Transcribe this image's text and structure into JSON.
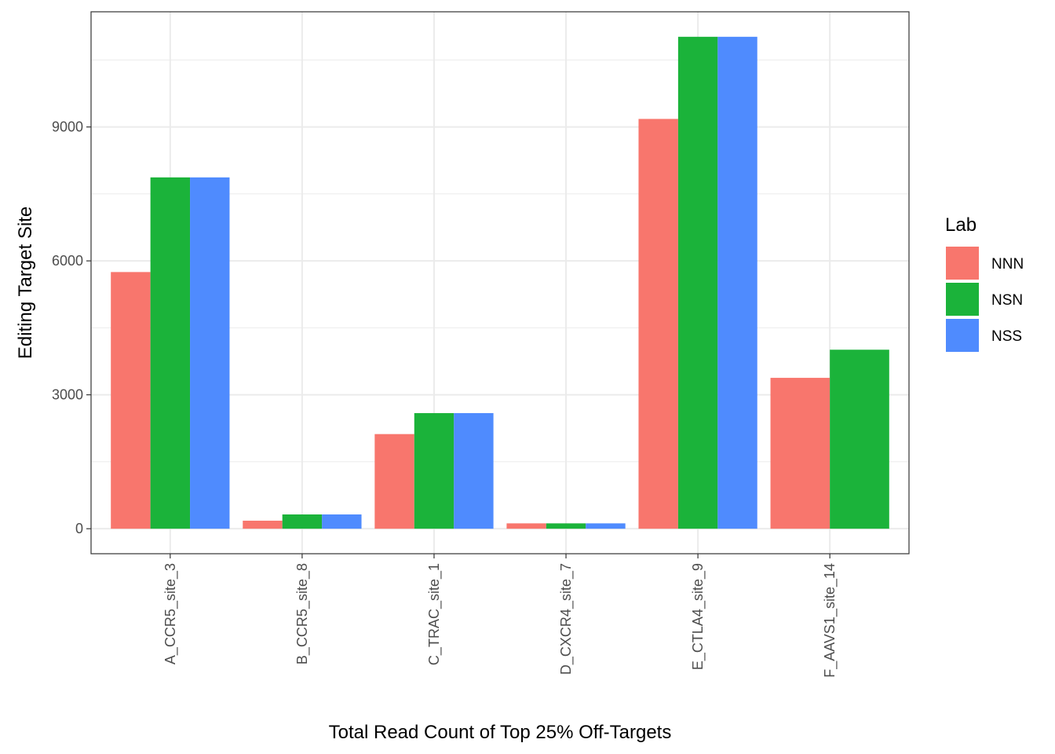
{
  "chart_data": {
    "type": "bar",
    "title": "",
    "xlabel": "Total Read Count of Top 25% Off-Targets",
    "ylabel": "Editing Target Site",
    "categories": [
      "A_CCR5_site_3",
      "B_CCR5_site_8",
      "C_TRAC_site_1",
      "D_CXCR4_site_7",
      "E_CTLA4_site_9",
      "F_AAVS1_site_14"
    ],
    "series": [
      {
        "name": "NNN",
        "color": "#f8766d",
        "values": [
          5750,
          180,
          2120,
          120,
          9180,
          3380
        ]
      },
      {
        "name": "NSN",
        "color": "#1bb33a",
        "values": [
          7870,
          320,
          2590,
          120,
          11020,
          4010
        ]
      },
      {
        "name": "NSS",
        "color": "#4f8bfe",
        "values": [
          7870,
          320,
          2590,
          120,
          11020,
          null
        ]
      }
    ],
    "ylim": [
      -560,
      11580
    ],
    "yticks": [
      0,
      3000,
      6000,
      9000
    ],
    "grid": true,
    "legend": {
      "title": "Lab",
      "position": "right"
    }
  }
}
